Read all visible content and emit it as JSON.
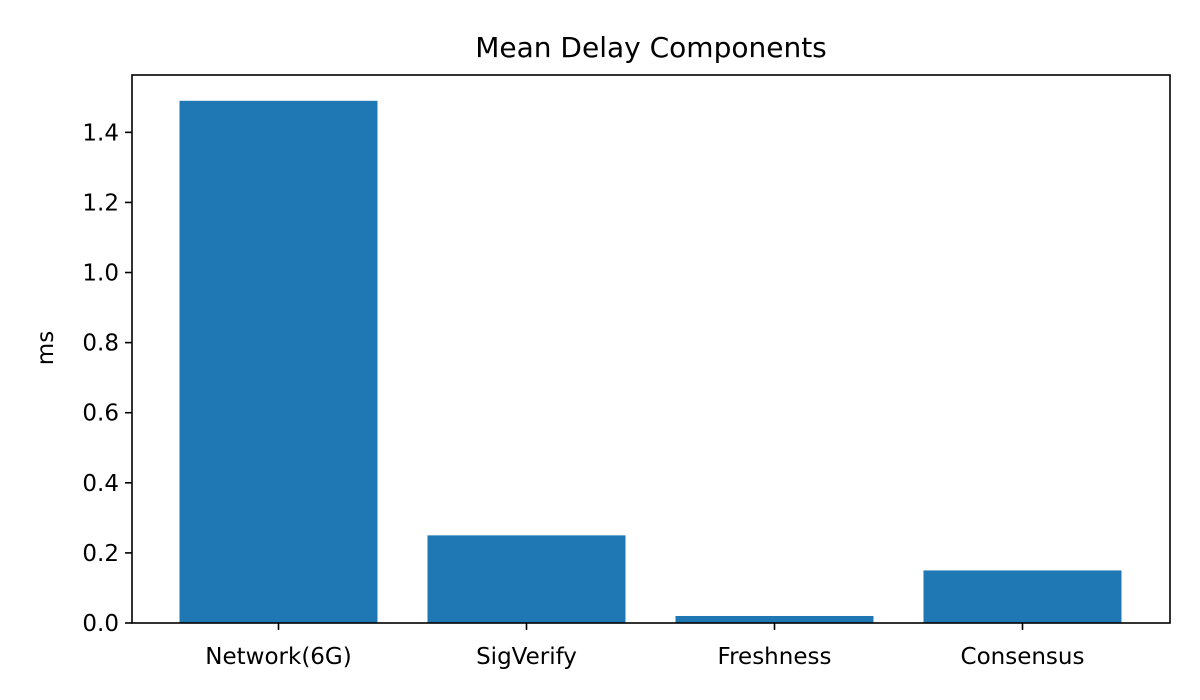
{
  "chart_data": {
    "type": "bar",
    "title": "Mean Delay Components",
    "xlabel": "",
    "ylabel": "ms",
    "categories": [
      "Network(6G)",
      "SigVerify",
      "Freshness",
      "Consensus"
    ],
    "values": [
      1.49,
      0.25,
      0.02,
      0.15
    ],
    "ylim": [
      0,
      1.5636
    ],
    "yticks": [
      0.0,
      0.2,
      0.4,
      0.6,
      0.8,
      1.0,
      1.2,
      1.4
    ],
    "ytick_labels": [
      "0.0",
      "0.2",
      "0.4",
      "0.6",
      "0.8",
      "1.0",
      "1.2",
      "1.4"
    ],
    "bar_color": "#1f77b4",
    "grid": false,
    "legend": "none"
  }
}
